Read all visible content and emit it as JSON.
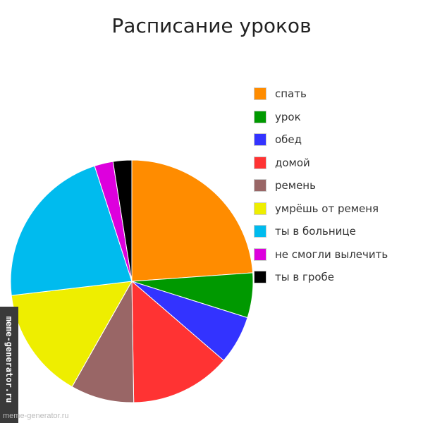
{
  "chart_data": {
    "type": "pie",
    "title": "Расписание уроков",
    "slices": [
      {
        "label": "спать",
        "value": 24,
        "color": "#ff8c00"
      },
      {
        "label": "урок",
        "value": 6,
        "color": "#009900"
      },
      {
        "label": "обед",
        "value": 6.5,
        "color": "#3333ff"
      },
      {
        "label": "домой",
        "value": 13.5,
        "color": "#ff3333"
      },
      {
        "label": "ремень",
        "value": 8.5,
        "color": "#996666"
      },
      {
        "label": "умрёшь от ременя",
        "value": 15,
        "color": "#eeee00"
      },
      {
        "label": "ты в больнице",
        "value": 22,
        "color": "#00bbee"
      },
      {
        "label": "не смогли вылечить",
        "value": 2.5,
        "color": "#dd00dd"
      },
      {
        "label": "ты в гробе",
        "value": 2.5,
        "color": "#000000"
      }
    ],
    "legend_position": "right"
  },
  "watermark": {
    "side_text": "meme-generator.ru",
    "bottom_text": "meme-generator.ru"
  }
}
